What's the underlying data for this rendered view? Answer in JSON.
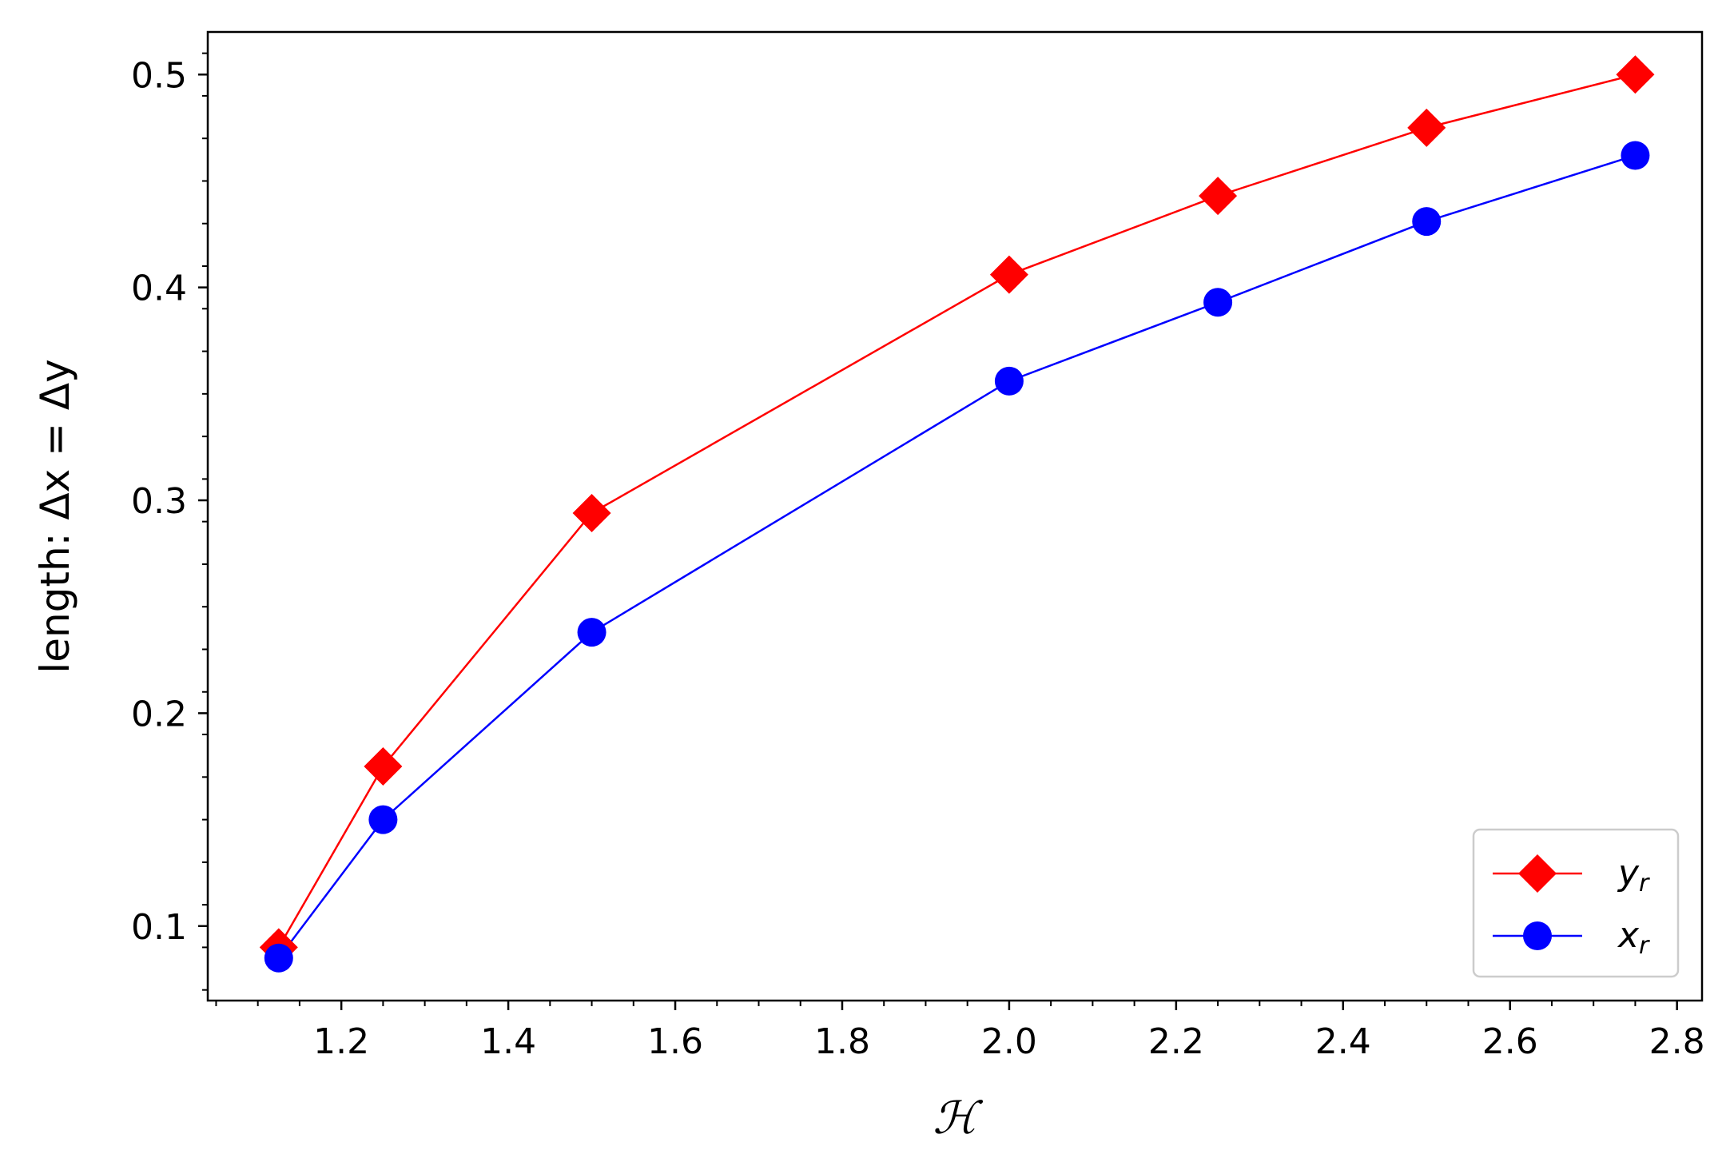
{
  "chart_data": {
    "type": "line",
    "xlabel": "ℋ",
    "ylabel": "length: Δx = Δy",
    "xlim": [
      1.04,
      2.83
    ],
    "ylim": [
      0.065,
      0.52
    ],
    "xticks": [
      "1.2",
      "1.4",
      "1.6",
      "1.8",
      "2.0",
      "2.2",
      "2.4",
      "2.6",
      "2.8"
    ],
    "yticks": [
      "0.1",
      "0.2",
      "0.3",
      "0.4",
      "0.5"
    ],
    "x": [
      1.125,
      1.25,
      1.5,
      2.0,
      2.25,
      2.5,
      2.75
    ],
    "series": [
      {
        "name": "y_r",
        "label_main": "y",
        "label_sub": "r",
        "color": "#ff0000",
        "marker": "diamond",
        "values": [
          0.09,
          0.175,
          0.294,
          0.406,
          0.443,
          0.475,
          0.5
        ]
      },
      {
        "name": "x_r",
        "label_main": "x",
        "label_sub": "r",
        "color": "#0000ff",
        "marker": "circle",
        "values": [
          0.085,
          0.15,
          0.238,
          0.356,
          0.393,
          0.431,
          0.462
        ]
      }
    ],
    "legend": "lower-right",
    "grid": false
  }
}
